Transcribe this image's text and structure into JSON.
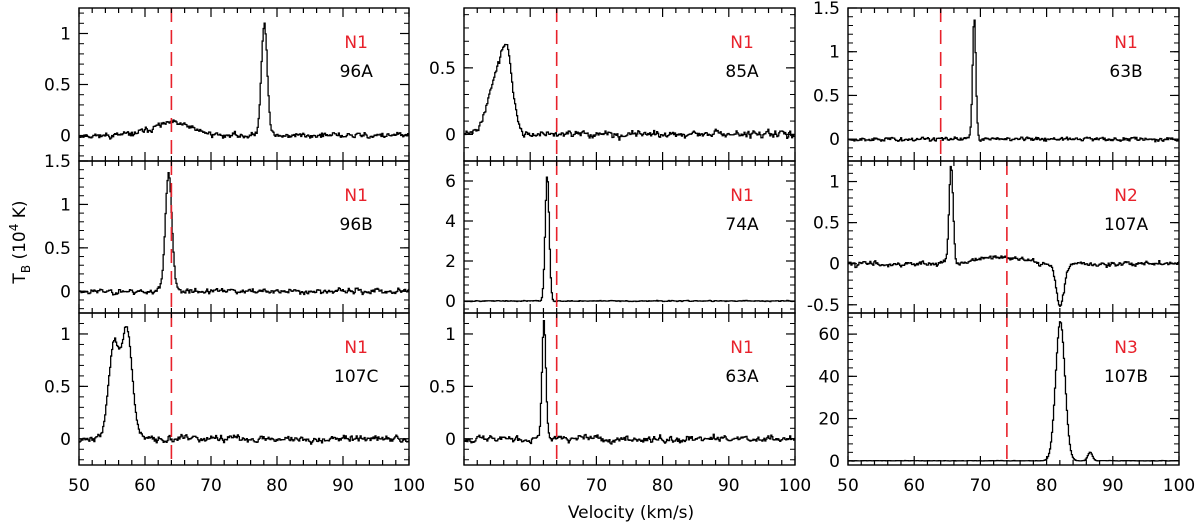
{
  "chart_data": {
    "type": "line",
    "xlabel": "Velocity (km/s)",
    "ylabel": "T",
    "ylabel_sub": "B",
    "ylabel_unit_pre": " (10",
    "ylabel_unit_exp": "4",
    "ylabel_unit_post": " K)",
    "xlim": [
      50,
      100
    ],
    "xticks": [
      50,
      60,
      70,
      80,
      90,
      100
    ],
    "colors": {
      "line": "#000000",
      "marker": "#e8212b",
      "label_top": "#e8212b",
      "label_bottom": "#000000"
    },
    "panels": [
      {
        "id": "96A",
        "col": 0,
        "row": 0,
        "label_top": "N1",
        "label_bottom": "96A",
        "ylim": [
          -0.25,
          1.25
        ],
        "yticks": [
          0,
          0.5,
          1
        ],
        "ytick_labels": [
          "0",
          "0.5",
          "1"
        ],
        "vline": 64,
        "noise": 0.045,
        "baseline_bump": {
          "center": 64,
          "width": 3,
          "amp": 0.12
        },
        "peaks": [
          {
            "center": 78,
            "width": 0.45,
            "amp": 1.1
          }
        ],
        "seed": 11
      },
      {
        "id": "96B",
        "col": 0,
        "row": 1,
        "label_top": "N1",
        "label_bottom": "96B",
        "ylim": [
          -0.25,
          1.5
        ],
        "yticks": [
          0,
          0.5,
          1,
          1.5
        ],
        "ytick_labels": [
          "0",
          "0.5",
          "1",
          "1.5"
        ],
        "vline": 64,
        "noise": 0.05,
        "peaks": [
          {
            "center": 63.5,
            "width": 0.5,
            "amp": 1.35
          }
        ],
        "seed": 23
      },
      {
        "id": "107C",
        "col": 0,
        "row": 2,
        "label_top": "N1",
        "label_bottom": "107C",
        "ylim": [
          -0.25,
          1.2
        ],
        "yticks": [
          0,
          0.5,
          1
        ],
        "ytick_labels": [
          "0",
          "0.5",
          "1"
        ],
        "vline": 64,
        "noise": 0.05,
        "peaks": [
          {
            "center": 55.2,
            "width": 0.8,
            "amp": 0.88
          },
          {
            "center": 57.2,
            "width": 0.8,
            "amp": 1.02
          }
        ],
        "seed": 37
      },
      {
        "id": "85A",
        "col": 1,
        "row": 0,
        "label_top": "N1",
        "label_bottom": "85A",
        "ylim": [
          -0.2,
          0.95
        ],
        "yticks": [
          0,
          0.5
        ],
        "ytick_labels": [
          "0",
          "0.5"
        ],
        "vline": 64,
        "noise": 0.04,
        "peaks": [
          {
            "center": 55,
            "width": 1.4,
            "amp": 0.45
          },
          {
            "center": 56.5,
            "width": 0.8,
            "amp": 0.4
          }
        ],
        "seed": 41
      },
      {
        "id": "74A",
        "col": 1,
        "row": 1,
        "label_top": "N1",
        "label_bottom": "74A",
        "ylim": [
          -0.6,
          7.0
        ],
        "yticks": [
          0,
          2,
          4,
          6
        ],
        "ytick_labels": [
          "0",
          "2",
          "4",
          "6"
        ],
        "vline": 64,
        "noise": 0.04,
        "peaks": [
          {
            "center": 62.5,
            "width": 0.3,
            "amp": 6.3
          }
        ],
        "seed": 53
      },
      {
        "id": "63A",
        "col": 1,
        "row": 2,
        "label_top": "N1",
        "label_bottom": "63A",
        "ylim": [
          -0.25,
          1.2
        ],
        "yticks": [
          0,
          0.5,
          1
        ],
        "ytick_labels": [
          "0",
          "0.5",
          "1"
        ],
        "vline": 64,
        "noise": 0.05,
        "peaks": [
          {
            "center": 62,
            "width": 0.3,
            "amp": 1.12
          }
        ],
        "seed": 67
      },
      {
        "id": "63B",
        "col": 2,
        "row": 0,
        "label_top": "N1",
        "label_bottom": "63B",
        "ylim": [
          -0.25,
          1.5
        ],
        "yticks": [
          0,
          0.5,
          1,
          1.5
        ],
        "ytick_labels": [
          "0",
          "0.5",
          "1",
          "1.5"
        ],
        "vline": 64,
        "noise": 0.04,
        "peaks": [
          {
            "center": 69,
            "width": 0.25,
            "amp": 1.38
          }
        ],
        "seed": 79
      },
      {
        "id": "107A",
        "col": 2,
        "row": 1,
        "label_top": "N2",
        "label_bottom": "107A",
        "ylim": [
          -0.6,
          1.25
        ],
        "yticks": [
          -0.5,
          0,
          0.5,
          1
        ],
        "ytick_labels": [
          "-0.5",
          "0",
          "0.5",
          "1"
        ],
        "vline": 74,
        "noise": 0.05,
        "baseline_bump": {
          "center": 73,
          "width": 3,
          "amp": 0.08
        },
        "peaks": [
          {
            "center": 65.5,
            "width": 0.3,
            "amp": 1.2
          },
          {
            "center": 82,
            "width": 0.6,
            "amp": -0.5
          }
        ],
        "seed": 83
      },
      {
        "id": "107B",
        "col": 2,
        "row": 2,
        "label_top": "N3",
        "label_bottom": "107B",
        "ylim": [
          -2,
          70
        ],
        "yticks": [
          0,
          20,
          40,
          60
        ],
        "ytick_labels": [
          "0",
          "20",
          "40",
          "60"
        ],
        "vline": 74,
        "noise": 0.15,
        "peaks": [
          {
            "center": 82,
            "width": 0.7,
            "amp": 66
          },
          {
            "center": 86.5,
            "width": 0.35,
            "amp": 4
          }
        ],
        "seed": 97
      }
    ]
  }
}
